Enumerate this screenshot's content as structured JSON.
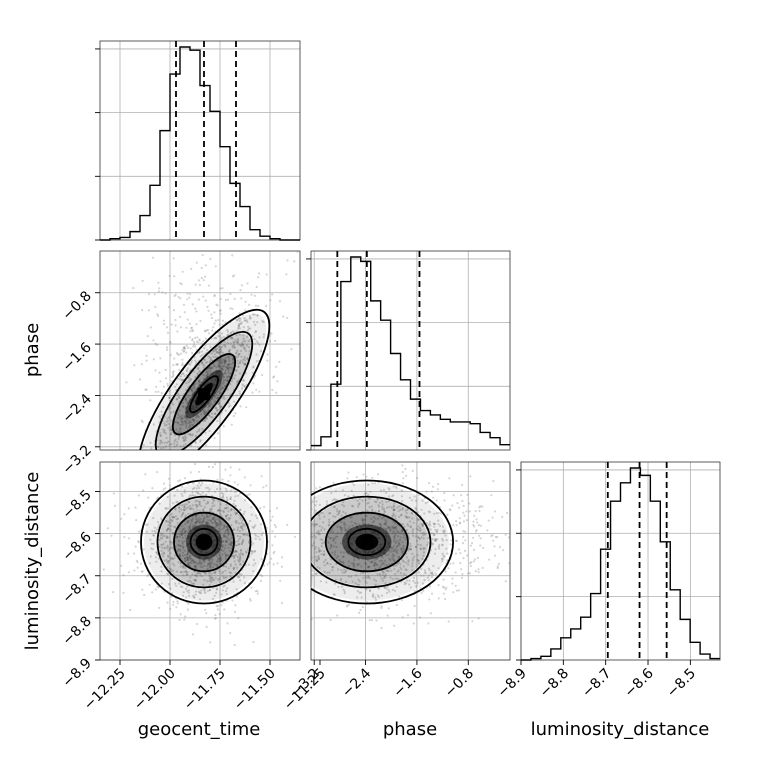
{
  "chart_data": {
    "type": "corner",
    "parameters": [
      "geocent_time",
      "phase",
      "luminosity_distance"
    ],
    "axes": {
      "geocent_time": {
        "range": [
          -12.35,
          -11.35
        ],
        "ticks": [
          -12.25,
          -12.0,
          -11.75,
          -11.5,
          -11.25
        ],
        "tick_labels": [
          "−12.25",
          "−12.00",
          "−11.75",
          "−11.50",
          "−11.25"
        ]
      },
      "phase": {
        "range": [
          -3.25,
          -0.15
        ],
        "ticks": [
          -3.2,
          -2.4,
          -1.6,
          -0.8
        ],
        "tick_labels": [
          "−3.2",
          "−2.4",
          "−1.6",
          "−0.8"
        ]
      },
      "luminosity_distance": {
        "range": [
          -8.9,
          -8.43
        ],
        "ticks": [
          -8.9,
          -8.8,
          -8.7,
          -8.6,
          -8.5
        ],
        "tick_labels": [
          "−8.9",
          "−8.8",
          "−8.7",
          "−8.6",
          "−8.5"
        ]
      }
    },
    "grid": true,
    "marginals": {
      "geocent_time": {
        "bin_edges": [
          -12.35,
          -12.3,
          -12.25,
          -12.2,
          -12.15,
          -12.1,
          -12.05,
          -12.0,
          -11.95,
          -11.9,
          -11.85,
          -11.8,
          -11.75,
          -11.7,
          -11.65,
          -11.6,
          -11.55,
          -11.5,
          -11.45,
          -11.4,
          -11.35
        ],
        "counts": [
          0,
          2,
          4,
          13,
          38,
          85,
          170,
          258,
          300,
          295,
          240,
          200,
          145,
          88,
          52,
          16,
          6,
          2,
          0,
          0
        ],
        "quantiles": [
          -11.97,
          -11.83,
          -11.67
        ]
      },
      "phase": {
        "bin_edges": [
          -3.25,
          -3.095,
          -2.94,
          -2.785,
          -2.63,
          -2.475,
          -2.32,
          -2.165,
          -2.01,
          -1.855,
          -1.7,
          -1.545,
          -1.39,
          -1.235,
          -1.08,
          -0.925,
          -0.77,
          -0.615,
          -0.46,
          -0.305,
          -0.15
        ],
        "counts": [
          5,
          15,
          75,
          192,
          220,
          215,
          170,
          148,
          110,
          80,
          58,
          45,
          40,
          35,
          32,
          32,
          30,
          20,
          14,
          6
        ],
        "quantiles": [
          -2.84,
          -2.38,
          -1.56
        ]
      },
      "luminosity_distance": {
        "bin_edges": [
          -8.9,
          -8.8765,
          -8.853,
          -8.8295,
          -8.806,
          -8.7825,
          -8.759,
          -8.7355,
          -8.712,
          -8.6885,
          -8.665,
          -8.6415,
          -8.618,
          -8.5945,
          -8.571,
          -8.5475,
          -8.524,
          -8.5005,
          -8.477,
          -8.4535,
          -8.43
        ],
        "counts": [
          0,
          2,
          5,
          15,
          30,
          42,
          58,
          90,
          150,
          215,
          240,
          260,
          250,
          215,
          160,
          95,
          55,
          24,
          8,
          2
        ],
        "quantiles": [
          -8.695,
          -8.62,
          -8.556
        ]
      }
    },
    "joint": {
      "phase_vs_geocent_time": {
        "correlation": "positive"
      },
      "luminosity_distance_vs_geocent_time": {
        "correlation": "none"
      },
      "luminosity_distance_vs_phase": {
        "correlation": "none"
      }
    }
  }
}
